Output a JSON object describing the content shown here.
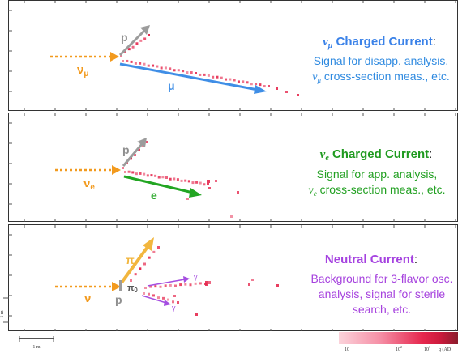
{
  "colors": {
    "numu_title": "#3b82e8",
    "body_text": "#2f8ae0",
    "nue_title": "#1f9a1f",
    "nue_body": "#22a022",
    "nc_title": "#a542e0",
    "nc_body": "#a642de",
    "neutrino_arrow": "#f29a1e",
    "proton": "#9c9c9c",
    "muon": "#3f8ee6",
    "electron": "#22a522",
    "pion": "#f2b63e",
    "photon": "#a54ee0",
    "hit": "#e6284e"
  },
  "panels": [
    {
      "title_sym": "ν",
      "title_sub": "μ",
      "title_text": " Charged Current",
      "title_colon": ":",
      "body_lines": [
        "Signal for disapp. analysis,",
        "cross-section meas., etc."
      ],
      "body_sym": "ν",
      "body_sub": "μ",
      "incoming_label": "ν",
      "incoming_sub": "μ",
      "proton_label": "p",
      "lepton_label": "μ"
    },
    {
      "title_sym": "ν",
      "title_sub": "e",
      "title_text": " Charged Current",
      "title_colon": ":",
      "body_lines": [
        "Signal for app. analysis,",
        "cross-section meas., etc."
      ],
      "body_sym": "ν",
      "body_sub": "e",
      "incoming_label": "ν",
      "incoming_sub": "e",
      "proton_label": "p",
      "lepton_label": "e"
    },
    {
      "title_text": "Neutral Current",
      "title_colon": ":",
      "body_lines": [
        "Background for 3-flavor osc.",
        "analysis, signal for sterile",
        "search, etc."
      ],
      "incoming_label": "ν",
      "proton_label": "p",
      "pion_label": "π",
      "pi0_label": "π",
      "pi0_sub": "0",
      "gamma_label": "γ"
    }
  ],
  "scale": {
    "vertical_label": "1 m",
    "horizontal_label": "1 m"
  },
  "colorbar": {
    "tick_labels": [
      "10",
      "10",
      "10"
    ],
    "tick_exponents": [
      "",
      "2",
      "3"
    ],
    "unit_label": "q (AD"
  }
}
